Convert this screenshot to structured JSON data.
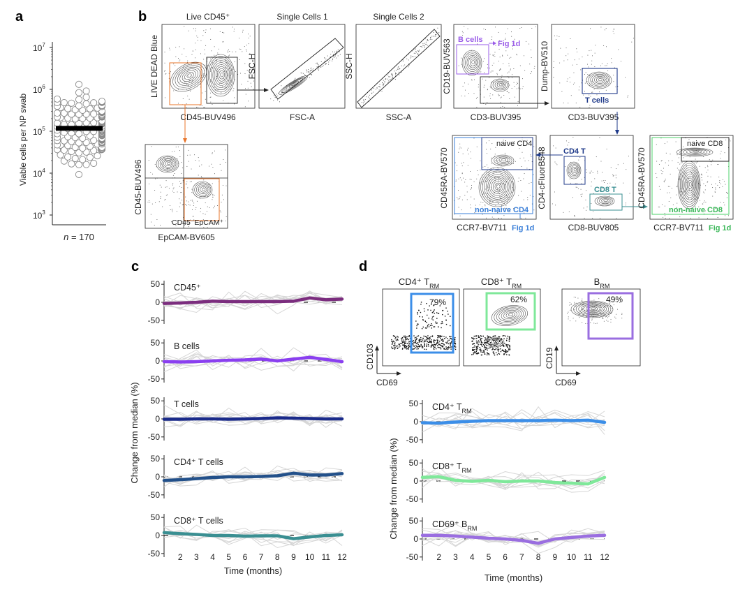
{
  "figure": {
    "panels": {
      "a": "a",
      "b": "b",
      "c": "c",
      "d": "d"
    },
    "panel_a": {
      "ylabel": "Viable cells per NP swab",
      "yticks": [
        {
          "base": "10",
          "exp": "3",
          "value": 3
        },
        {
          "base": "10",
          "exp": "4",
          "value": 4
        },
        {
          "base": "10",
          "exp": "5",
          "value": 5
        },
        {
          "base": "10",
          "exp": "6",
          "value": 6
        },
        {
          "base": "10",
          "exp": "7",
          "value": 7
        }
      ],
      "n_label_italic": "n",
      "n_label_rest": " = 170",
      "median_log10": 5.07
    },
    "panel_b": {
      "live": {
        "title": "Live CD45⁺",
        "ylabel": "LIVE DEAD Blue",
        "xlabel": "CD45-BUV496"
      },
      "single1": {
        "title": "Single Cells 1",
        "ylabel": "FSC-H",
        "xlabel": "FSC-A"
      },
      "single2": {
        "title": "Single Cells 2",
        "ylabel": "SSC-H",
        "xlabel": "SSC-A"
      },
      "bcells": {
        "ylabel": "CD19-BUV563",
        "xlabel": "CD3-BUV395",
        "gate_b": "B cells",
        "fig_ref": "Fig 1d"
      },
      "tcells": {
        "ylabel": "Dump-BV510",
        "xlabel": "CD3-BUV395",
        "gate_t": "T cells"
      },
      "epcam": {
        "ylabel": "CD45-BUV496",
        "xlabel": "EpCAM-BV605",
        "gate": "CD45⁻EpCAM⁺"
      },
      "cd4naive": {
        "ylabel": "CD45RA-BV570",
        "xlabel": "CCR7-BV711",
        "gate_naive": "naive CD4",
        "gate_nonnaive": "non-naive CD4",
        "fig_ref": "Fig 1d"
      },
      "cd4cd8": {
        "ylabel": "CD4-cFluorB548",
        "xlabel": "CD8-BUV805",
        "gate_cd4": "CD4 T",
        "gate_cd8": "CD8 T"
      },
      "cd8naive": {
        "ylabel": "CD45RA-BV570",
        "xlabel": "CCR7-BV711",
        "gate_naive": "naive CD8",
        "gate_nonnaive": "non-naive CD8",
        "fig_ref": "Fig 1d"
      }
    },
    "panel_d_flow": {
      "cd4trm": {
        "title_main": "CD4⁺ T",
        "title_sub": "RM",
        "pct": "79%"
      },
      "cd8trm": {
        "title_main": "CD8⁺ T",
        "title_sub": "RM",
        "pct": "62%"
      },
      "brm": {
        "title_main": "B",
        "title_sub": "RM",
        "pct": "49%"
      },
      "ylabel_left": "CD103",
      "xlabel_left": "CD69",
      "ylabel_right": "CD19",
      "xlabel_right": "CD69"
    },
    "colors": {
      "cd45": "#7b2d7e",
      "bcells": "#8a3ff0",
      "tcells": "#1a2a8a",
      "cd4t": "#22508a",
      "cd8t": "#3a8f92",
      "cd4trm": "#3b8ee8",
      "cd8trm": "#7fe89a",
      "brm": "#9a6ee0",
      "orange": "#e8742a",
      "purple_gate": "#9a5ce8",
      "blue_gate": "#3a7fd8",
      "green_gate": "#4bd16a",
      "navy": "#1f3a8a"
    }
  },
  "chart_data": [
    {
      "type": "line",
      "panel": "c",
      "xlabel": "Time (months)",
      "ylabel": "Change from median (%)",
      "x": [
        1,
        2,
        3,
        4,
        5,
        6,
        7,
        8,
        9,
        10,
        11,
        12
      ],
      "xticks": [
        "2",
        "3",
        "4",
        "5",
        "6",
        "7",
        "8",
        "9",
        "10",
        "11",
        "12"
      ],
      "yticks": [
        "50",
        "0",
        "-50"
      ],
      "ylim": [
        -60,
        60
      ],
      "series": [
        {
          "name": "CD45⁺",
          "values": [
            -3,
            -2,
            0,
            3,
            2,
            2,
            2,
            2,
            3,
            12,
            7,
            9
          ]
        },
        {
          "name": "B cells",
          "values": [
            -2,
            -3,
            -2,
            0,
            2,
            3,
            5,
            0,
            5,
            10,
            4,
            -2
          ]
        },
        {
          "name": "T cells",
          "values": [
            -1,
            -1,
            0,
            0,
            -1,
            0,
            1,
            3,
            2,
            1,
            0,
            0
          ]
        },
        {
          "name": "CD4⁺ T cells",
          "values": [
            -10,
            -8,
            -5,
            -2,
            0,
            0,
            1,
            3,
            10,
            5,
            5,
            9
          ]
        },
        {
          "name": "CD8⁺ T cells",
          "values": [
            8,
            5,
            3,
            0,
            0,
            -2,
            -1,
            -1,
            -9,
            -4,
            0,
            2
          ]
        }
      ]
    },
    {
      "type": "line",
      "panel": "d",
      "xlabel": "Time (months)",
      "ylabel": "Change from median (%)",
      "x": [
        1,
        2,
        3,
        4,
        5,
        6,
        7,
        8,
        9,
        10,
        11,
        12
      ],
      "xticks": [
        "2",
        "3",
        "4",
        "5",
        "6",
        "7",
        "8",
        "9",
        "10",
        "11",
        "12"
      ],
      "yticks": [
        "50",
        "0",
        "-50"
      ],
      "ylim": [
        -60,
        60
      ],
      "series": [
        {
          "name_main": "CD4⁺ T",
          "name_sub": "RM",
          "values": [
            -3,
            -4,
            -1,
            1,
            3,
            3,
            3,
            3,
            4,
            3,
            4,
            -2
          ]
        },
        {
          "name_main": "CD8⁺ T",
          "name_sub": "RM",
          "values": [
            10,
            12,
            2,
            -1,
            2,
            -2,
            0,
            0,
            -4,
            -6,
            -8,
            10
          ]
        },
        {
          "name_main": "CD69⁺ B",
          "name_sub": "RM",
          "values": [
            10,
            10,
            8,
            5,
            2,
            0,
            -4,
            -12,
            0,
            4,
            8,
            10
          ]
        }
      ]
    }
  ]
}
